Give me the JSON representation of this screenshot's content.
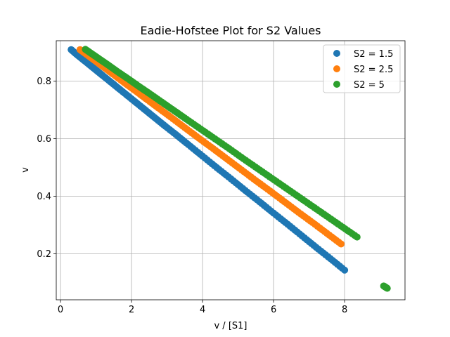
{
  "chart_data": {
    "type": "scatter",
    "title": "Eadie-Hofstee Plot for S2 Values",
    "xlabel": "v / [S1]",
    "ylabel": "v",
    "xlim": [
      -0.12,
      9.7
    ],
    "ylim": [
      0.04,
      0.94
    ],
    "xticks": [
      0,
      2,
      4,
      6,
      8
    ],
    "yticks": [
      0.2,
      0.4,
      0.6,
      0.8
    ],
    "xtick_labels": [
      "0",
      "2",
      "4",
      "6",
      "8"
    ],
    "ytick_labels": [
      "0.2",
      "0.4",
      "0.6",
      "0.8"
    ],
    "grid": true,
    "legend_position": "top-right",
    "series": [
      {
        "name": "S2 = 1.5",
        "color": "#1f77b4",
        "points": [
          [
            0.3,
            0.909
          ],
          [
            0.45,
            0.893
          ],
          [
            0.6,
            0.878
          ],
          [
            0.8,
            0.858
          ],
          [
            1.0,
            0.838
          ],
          [
            1.2,
            0.818
          ],
          [
            1.45,
            0.793
          ],
          [
            1.7,
            0.768
          ],
          [
            2.0,
            0.738
          ],
          [
            2.3,
            0.708
          ],
          [
            2.6,
            0.678
          ],
          [
            2.9,
            0.648
          ],
          [
            3.25,
            0.614
          ],
          [
            3.6,
            0.579
          ],
          [
            4.0,
            0.539
          ],
          [
            4.4,
            0.499
          ],
          [
            4.8,
            0.46
          ],
          [
            5.2,
            0.42
          ],
          [
            5.6,
            0.381
          ],
          [
            6.0,
            0.341
          ],
          [
            6.4,
            0.302
          ],
          [
            6.8,
            0.262
          ],
          [
            7.2,
            0.222
          ],
          [
            7.6,
            0.183
          ],
          [
            8.0,
            0.143
          ]
        ]
      },
      {
        "name": "S2 = 2.5",
        "color": "#ff7f0e",
        "points": [
          [
            0.55,
            0.909
          ],
          [
            0.75,
            0.891
          ],
          [
            1.0,
            0.868
          ],
          [
            1.25,
            0.845
          ],
          [
            1.5,
            0.822
          ],
          [
            1.8,
            0.794
          ],
          [
            2.1,
            0.767
          ],
          [
            2.4,
            0.739
          ],
          [
            2.75,
            0.707
          ],
          [
            3.1,
            0.675
          ],
          [
            3.5,
            0.638
          ],
          [
            3.9,
            0.601
          ],
          [
            4.3,
            0.565
          ],
          [
            4.7,
            0.528
          ],
          [
            5.1,
            0.491
          ],
          [
            5.5,
            0.454
          ],
          [
            5.9,
            0.418
          ],
          [
            6.3,
            0.381
          ],
          [
            6.7,
            0.344
          ],
          [
            7.1,
            0.308
          ],
          [
            7.5,
            0.271
          ],
          [
            7.9,
            0.234
          ]
        ]
      },
      {
        "name": "S2 = 5",
        "color": "#2ca02c",
        "points": [
          [
            0.7,
            0.91
          ],
          [
            0.9,
            0.893
          ],
          [
            1.1,
            0.876
          ],
          [
            1.35,
            0.855
          ],
          [
            1.6,
            0.833
          ],
          [
            1.9,
            0.808
          ],
          [
            2.2,
            0.782
          ],
          [
            2.5,
            0.757
          ],
          [
            2.85,
            0.727
          ],
          [
            3.2,
            0.697
          ],
          [
            3.55,
            0.667
          ],
          [
            3.95,
            0.633
          ],
          [
            4.35,
            0.599
          ],
          [
            4.75,
            0.565
          ],
          [
            5.15,
            0.53
          ],
          [
            5.55,
            0.496
          ],
          [
            5.95,
            0.462
          ],
          [
            6.35,
            0.428
          ],
          [
            6.75,
            0.394
          ],
          [
            7.15,
            0.36
          ],
          [
            7.55,
            0.326
          ],
          [
            7.95,
            0.292
          ],
          [
            8.35,
            0.258
          ],
          [
            9.2,
            0.08
          ],
          [
            9.1,
            0.088
          ]
        ]
      }
    ]
  }
}
